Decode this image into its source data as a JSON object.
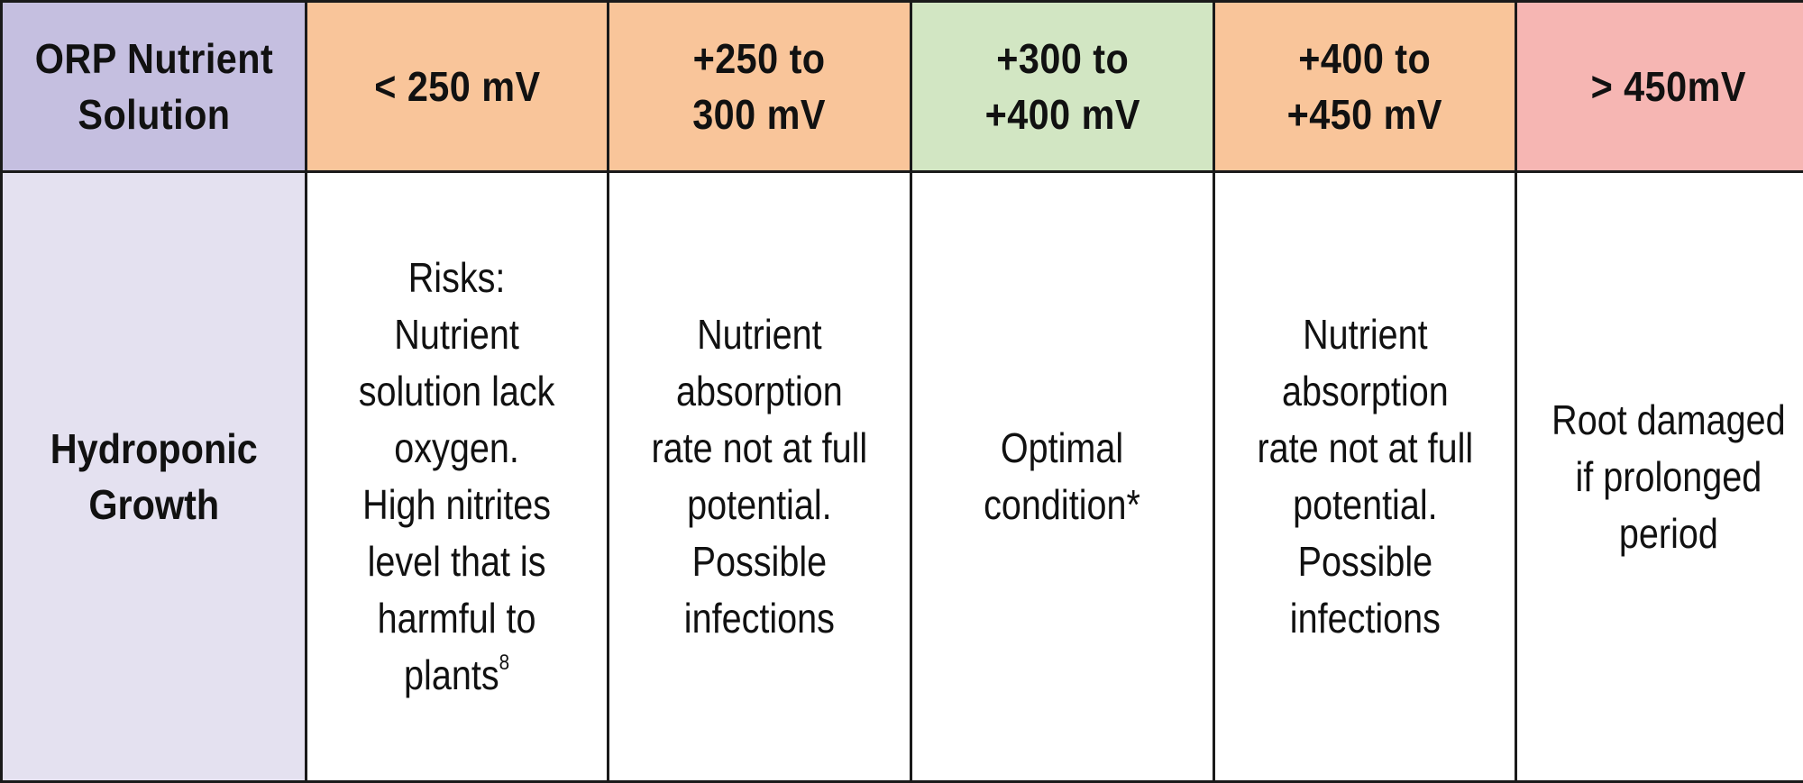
{
  "table": {
    "header_row_label": "ORP Nutrient\nSolution",
    "row_label": "Hydroponic\nGrowth",
    "columns": [
      {
        "range": "< 250 mV",
        "description": "Risks:\nNutrient\nsolution lack\noxygen.\nHigh nitrites\nlevel that is\nharmful to\nplants",
        "footnote": "8",
        "header_color": "#f9c59a"
      },
      {
        "range": "+250 to\n300 mV",
        "description": "Nutrient\nabsorption\nrate not at full\npotential.\nPossible\ninfections",
        "footnote": "",
        "header_color": "#f9c59a"
      },
      {
        "range": "+300 to\n+400 mV",
        "description": "Optimal\ncondition*",
        "footnote": "",
        "header_color": "#d2e6c3"
      },
      {
        "range": "+400 to\n+450 mV",
        "description": "Nutrient\nabsorption\nrate not at full\npotential.\nPossible\ninfections",
        "footnote": "",
        "header_color": "#f9c59a"
      },
      {
        "range": "> 450mV",
        "description": "Root damaged\nif prolonged\nperiod",
        "footnote": "",
        "header_color": "#f6b6b3"
      }
    ],
    "colors": {
      "label_header": "#c5bfe0",
      "label_body": "#e4e1f0",
      "body_background": "#ffffff",
      "border": "#1a1a1a"
    }
  }
}
